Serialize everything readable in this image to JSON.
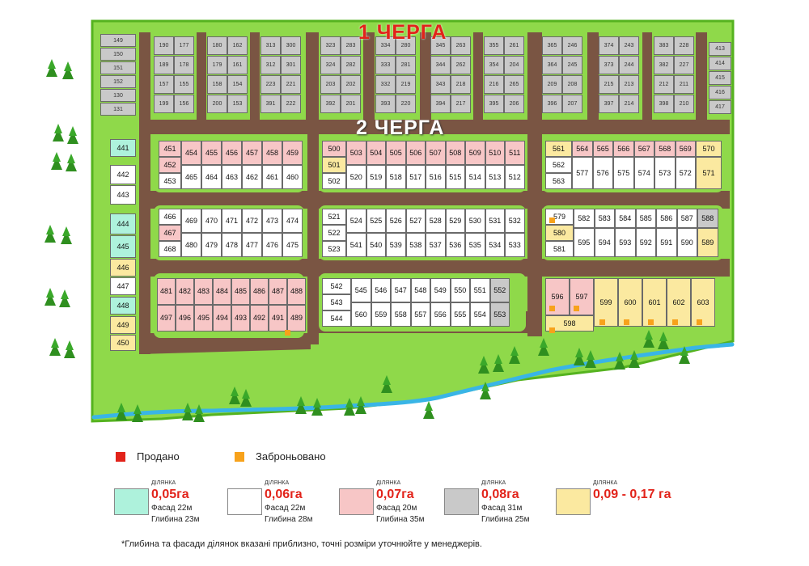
{
  "labels": {
    "queue1": "1 ЧЕРГА",
    "queue2": "2 ЧЕРГА"
  },
  "legend": {
    "sold": "Продано",
    "reserved": "Заброньовано"
  },
  "categories": [
    {
      "caption": "ДІЛЯНКА",
      "area": "0,05га",
      "facade": "Фасад 22м",
      "depth": "Глибина 23м",
      "color": "#aef2dc"
    },
    {
      "caption": "ДІЛЯНКА",
      "area": "0,06га",
      "facade": "Фасад 22м",
      "depth": "Глибина 28м",
      "color": "#ffffff"
    },
    {
      "caption": "ДІЛЯНКА",
      "area": "0,07га",
      "facade": "Фасад 20м",
      "depth": "Глибина 35м",
      "color": "#f7c6c6"
    },
    {
      "caption": "ДІЛЯНКА",
      "area": "0,08га",
      "facade": "Фасад 31м",
      "depth": "Глибина 25м",
      "color": "#c9c9c9"
    },
    {
      "caption": "ДІЛЯНКА",
      "area": "0,09 - 0,17 га",
      "facade": "",
      "depth": "",
      "color": "#fbe9a0"
    }
  ],
  "note": "*Глибина та фасади ділянок вказані приблизно, точні розміри уточнюйте у менеджерів.",
  "colors": {
    "sold": "#e2231a",
    "reserved": "#f7a21b",
    "grass": "#8fd94a",
    "grass_dark": "#55b31f",
    "road": "#7a5543",
    "river": "#39b5e6"
  },
  "queue1_columns": [
    {
      "a": [
        "149",
        "150",
        "151",
        "152",
        "130",
        "131"
      ],
      "b": []
    },
    {
      "a": [
        "190",
        "189",
        "157",
        "199"
      ],
      "b": [
        "177",
        "178",
        "155",
        "156"
      ]
    },
    {
      "a": [
        "180",
        "179",
        "158",
        "200"
      ],
      "b": [
        "162",
        "161",
        "154",
        "153"
      ]
    },
    {
      "a": [
        "313",
        "312",
        "223",
        "391"
      ],
      "b": [
        "300",
        "301",
        "221",
        "222"
      ]
    },
    {
      "a": [
        "323",
        "324",
        "203",
        "392"
      ],
      "b": [
        "283",
        "282",
        "202",
        "201"
      ]
    },
    {
      "a": [
        "334",
        "333",
        "332",
        "393"
      ],
      "b": [
        "280",
        "281",
        "219",
        "220"
      ]
    },
    {
      "a": [
        "345",
        "344",
        "343",
        "394"
      ],
      "b": [
        "263",
        "262",
        "218",
        "217"
      ]
    },
    {
      "a": [
        "355",
        "354",
        "216",
        "395"
      ],
      "b": [
        "261",
        "204",
        "265",
        "206"
      ]
    },
    {
      "a": [
        "365",
        "364",
        "209",
        "396"
      ],
      "b": [
        "246",
        "245",
        "208",
        "207"
      ]
    },
    {
      "a": [
        "374",
        "373",
        "215",
        "397"
      ],
      "b": [
        "243",
        "244",
        "213",
        "214"
      ]
    },
    {
      "a": [
        "383",
        "382",
        "212",
        "398"
      ],
      "b": [
        "228",
        "227",
        "211",
        "210"
      ]
    },
    {
      "a": [
        "413",
        "414",
        "415",
        "416",
        "417"
      ],
      "b": []
    }
  ],
  "left_column": [
    {
      "n": "441",
      "t": "m"
    },
    {
      "n": "442",
      "t": "w"
    },
    {
      "n": "443",
      "t": "w"
    },
    {
      "n": "444",
      "t": "m"
    },
    {
      "n": "445",
      "t": "m"
    },
    {
      "n": "446",
      "t": "y"
    },
    {
      "n": "447",
      "t": "w"
    },
    {
      "n": "448",
      "t": "m"
    },
    {
      "n": "449",
      "t": "y"
    },
    {
      "n": "450",
      "t": "y"
    }
  ],
  "block1": {
    "top": [
      "454",
      "455",
      "456",
      "457",
      "458",
      "459"
    ],
    "left": [
      "451",
      "452",
      "453"
    ],
    "bottom": [
      "465",
      "464",
      "463",
      "462",
      "461",
      "460"
    ]
  },
  "block2": {
    "top": [
      "469",
      "470",
      "471",
      "472",
      "473",
      "474"
    ],
    "left": [
      "466",
      "467",
      "468"
    ],
    "bottom": [
      "480",
      "479",
      "478",
      "477",
      "476",
      "475"
    ]
  },
  "block3": {
    "top": [
      "481",
      "482",
      "483",
      "484",
      "485",
      "486",
      "487",
      "488"
    ],
    "bottom": [
      "497",
      "496",
      "495",
      "494",
      "493",
      "492",
      "491",
      "489"
    ]
  },
  "block4": {
    "top": [
      "503",
      "504",
      "505",
      "506",
      "507",
      "508",
      "509",
      "510",
      "511"
    ],
    "left": [
      "500",
      "501",
      "502"
    ],
    "bottom": [
      "520",
      "519",
      "518",
      "517",
      "516",
      "515",
      "514",
      "513",
      "512"
    ]
  },
  "block5": {
    "top": [
      "524",
      "525",
      "526",
      "527",
      "528",
      "529",
      "530",
      "531",
      "532"
    ],
    "left": [
      "521",
      "522",
      "523"
    ],
    "bottom": [
      "541",
      "540",
      "539",
      "538",
      "537",
      "536",
      "535",
      "534",
      "533"
    ]
  },
  "block6": {
    "top": [
      "545",
      "546",
      "547",
      "548",
      "549",
      "550",
      "551",
      "552"
    ],
    "left": [
      "542",
      "543",
      "544"
    ],
    "bottom": [
      "560",
      "559",
      "558",
      "557",
      "556",
      "555",
      "554",
      "553"
    ]
  },
  "block7": {
    "top": [
      "564",
      "565",
      "566",
      "567",
      "568",
      "569"
    ],
    "left": [
      "561",
      "562",
      "563"
    ],
    "bottom": [
      "577",
      "576",
      "575",
      "574",
      "573",
      "572"
    ],
    "right": [
      "570",
      "571"
    ]
  },
  "block8": {
    "top": [
      "582",
      "583",
      "584",
      "585",
      "586",
      "587",
      "588"
    ],
    "left": [
      "579",
      "580",
      "581"
    ],
    "bottom": [
      "595",
      "594",
      "593",
      "592",
      "591",
      "590",
      "589"
    ]
  },
  "block9": {
    "cells": [
      "596",
      "597",
      "599",
      "600",
      "601",
      "602",
      "603",
      "598"
    ]
  }
}
